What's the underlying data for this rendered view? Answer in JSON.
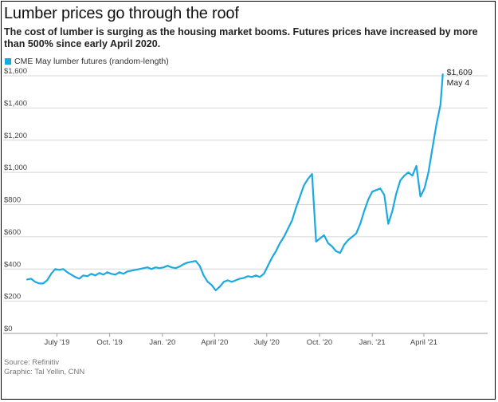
{
  "chart_data": {
    "type": "line",
    "title": "Lumber prices go through the roof",
    "subtitle": "The cost of lumber is surging as the housing market booms. Futures prices have increased by more than 500% since early April 2020.",
    "xlabel": "",
    "ylabel": "",
    "ylim": [
      0,
      1600
    ],
    "grid": true,
    "legend_placement": "top-left",
    "y_ticks": [
      0,
      200,
      400,
      600,
      800,
      1000,
      1200,
      1400,
      1600
    ],
    "y_tick_labels": [
      "$0",
      "$200",
      "$400",
      "$600",
      "$800",
      "$1,000",
      "$1,200",
      "$1,400",
      "$1,600"
    ],
    "x_ticks": [
      {
        "date": "2019-07-01",
        "label": "July '19"
      },
      {
        "date": "2019-10-01",
        "label": "Oct. '19"
      },
      {
        "date": "2020-01-01",
        "label": "Jan. '20"
      },
      {
        "date": "2020-04-01",
        "label": "April '20"
      },
      {
        "date": "2020-07-01",
        "label": "July '20"
      },
      {
        "date": "2020-10-01",
        "label": "Oct. '20"
      },
      {
        "date": "2021-01-01",
        "label": "Jan. '21"
      },
      {
        "date": "2021-04-01",
        "label": "April '21"
      }
    ],
    "x_range": [
      "2019-05-10",
      "2021-05-10"
    ],
    "series": [
      {
        "name": "CME May lumber futures (random-length)",
        "color": "#1ba9e1",
        "points": [
          [
            "2019-05-10",
            335
          ],
          [
            "2019-05-17",
            340
          ],
          [
            "2019-05-24",
            320
          ],
          [
            "2019-05-31",
            310
          ],
          [
            "2019-06-07",
            310
          ],
          [
            "2019-06-14",
            330
          ],
          [
            "2019-06-21",
            370
          ],
          [
            "2019-06-28",
            400
          ],
          [
            "2019-07-05",
            395
          ],
          [
            "2019-07-12",
            400
          ],
          [
            "2019-07-19",
            380
          ],
          [
            "2019-07-26",
            365
          ],
          [
            "2019-08-02",
            350
          ],
          [
            "2019-08-09",
            340
          ],
          [
            "2019-08-16",
            360
          ],
          [
            "2019-08-23",
            355
          ],
          [
            "2019-08-30",
            370
          ],
          [
            "2019-09-06",
            360
          ],
          [
            "2019-09-13",
            375
          ],
          [
            "2019-09-20",
            365
          ],
          [
            "2019-09-27",
            380
          ],
          [
            "2019-10-04",
            370
          ],
          [
            "2019-10-11",
            365
          ],
          [
            "2019-10-18",
            380
          ],
          [
            "2019-10-25",
            370
          ],
          [
            "2019-11-01",
            385
          ],
          [
            "2019-11-08",
            390
          ],
          [
            "2019-11-15",
            395
          ],
          [
            "2019-11-22",
            400
          ],
          [
            "2019-11-29",
            405
          ],
          [
            "2019-12-06",
            410
          ],
          [
            "2019-12-13",
            400
          ],
          [
            "2019-12-20",
            410
          ],
          [
            "2019-12-27",
            405
          ],
          [
            "2020-01-03",
            410
          ],
          [
            "2020-01-10",
            420
          ],
          [
            "2020-01-17",
            410
          ],
          [
            "2020-01-24",
            405
          ],
          [
            "2020-01-31",
            415
          ],
          [
            "2020-02-07",
            430
          ],
          [
            "2020-02-14",
            440
          ],
          [
            "2020-02-21",
            445
          ],
          [
            "2020-02-28",
            450
          ],
          [
            "2020-03-06",
            420
          ],
          [
            "2020-03-13",
            360
          ],
          [
            "2020-03-20",
            320
          ],
          [
            "2020-03-27",
            300
          ],
          [
            "2020-04-03",
            268
          ],
          [
            "2020-04-10",
            290
          ],
          [
            "2020-04-17",
            320
          ],
          [
            "2020-04-24",
            330
          ],
          [
            "2020-05-01",
            320
          ],
          [
            "2020-05-08",
            330
          ],
          [
            "2020-05-15",
            340
          ],
          [
            "2020-05-22",
            345
          ],
          [
            "2020-05-29",
            355
          ],
          [
            "2020-06-05",
            350
          ],
          [
            "2020-06-12",
            360
          ],
          [
            "2020-06-19",
            350
          ],
          [
            "2020-06-26",
            370
          ],
          [
            "2020-07-03",
            420
          ],
          [
            "2020-07-10",
            470
          ],
          [
            "2020-07-17",
            510
          ],
          [
            "2020-07-24",
            560
          ],
          [
            "2020-07-31",
            600
          ],
          [
            "2020-08-07",
            650
          ],
          [
            "2020-08-14",
            700
          ],
          [
            "2020-08-21",
            780
          ],
          [
            "2020-08-28",
            850
          ],
          [
            "2020-09-04",
            920
          ],
          [
            "2020-09-11",
            960
          ],
          [
            "2020-09-18",
            990
          ],
          [
            "2020-09-25",
            570
          ],
          [
            "2020-10-02",
            590
          ],
          [
            "2020-10-09",
            610
          ],
          [
            "2020-10-16",
            560
          ],
          [
            "2020-10-23",
            540
          ],
          [
            "2020-10-30",
            510
          ],
          [
            "2020-11-06",
            500
          ],
          [
            "2020-11-13",
            550
          ],
          [
            "2020-11-20",
            580
          ],
          [
            "2020-11-27",
            600
          ],
          [
            "2020-12-04",
            620
          ],
          [
            "2020-12-11",
            680
          ],
          [
            "2020-12-18",
            760
          ],
          [
            "2020-12-25",
            830
          ],
          [
            "2021-01-01",
            880
          ],
          [
            "2021-01-08",
            890
          ],
          [
            "2021-01-15",
            900
          ],
          [
            "2021-01-22",
            860
          ],
          [
            "2021-01-29",
            680
          ],
          [
            "2021-02-05",
            760
          ],
          [
            "2021-02-12",
            870
          ],
          [
            "2021-02-19",
            950
          ],
          [
            "2021-02-26",
            980
          ],
          [
            "2021-03-05",
            1000
          ],
          [
            "2021-03-12",
            980
          ],
          [
            "2021-03-19",
            1040
          ],
          [
            "2021-03-26",
            850
          ],
          [
            "2021-04-02",
            900
          ],
          [
            "2021-04-09",
            1000
          ],
          [
            "2021-04-16",
            1150
          ],
          [
            "2021-04-23",
            1300
          ],
          [
            "2021-04-30",
            1420
          ],
          [
            "2021-05-04",
            1609
          ]
        ]
      }
    ],
    "annotations": [
      {
        "value": "$1,609",
        "date_label": "May 4"
      }
    ],
    "source": "Source: Refinitiv",
    "credit": "Graphic: Tal Yellin, CNN"
  }
}
